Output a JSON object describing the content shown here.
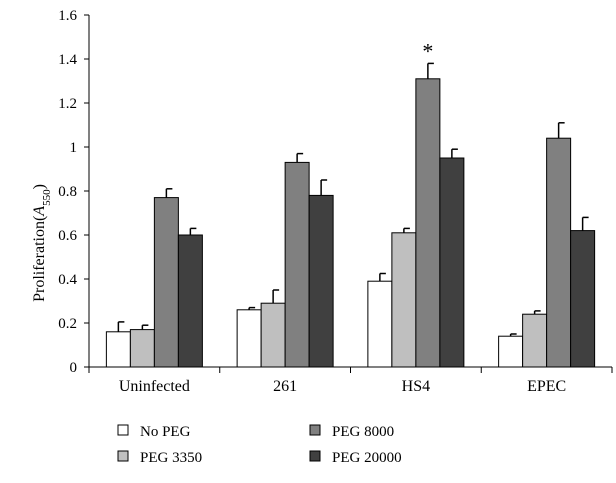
{
  "chart_data": {
    "type": "bar",
    "categories": [
      "Uninfected",
      "261",
      "HS4",
      "EPEC"
    ],
    "series": [
      {
        "name": "No PEG",
        "values": [
          0.16,
          0.26,
          0.39,
          0.14
        ],
        "errors": [
          0.045,
          0.01,
          0.035,
          0.01
        ],
        "color": "#ffffff"
      },
      {
        "name": "PEG 3350",
        "values": [
          0.17,
          0.29,
          0.61,
          0.24
        ],
        "errors": [
          0.02,
          0.06,
          0.02,
          0.015
        ],
        "color": "#bfbfbf"
      },
      {
        "name": "PEG 8000",
        "values": [
          0.77,
          0.93,
          1.31,
          1.04
        ],
        "errors": [
          0.04,
          0.04,
          0.07,
          0.07
        ],
        "color": "#808080"
      },
      {
        "name": "PEG 20000",
        "values": [
          0.6,
          0.78,
          0.95,
          0.62
        ],
        "errors": [
          0.03,
          0.07,
          0.04,
          0.06
        ],
        "color": "#404040"
      }
    ],
    "ylabel": "Proliferation",
    "ylabel_subscript": "550",
    "ylabel_var": "A",
    "xlabel": "",
    "ylim": [
      0,
      1.6
    ],
    "yticks": [
      "0",
      "0.2",
      "0.4",
      "0.6",
      "0.8",
      "1",
      "1.2",
      "1.4",
      "1.6"
    ],
    "annotations": [
      {
        "text": "*",
        "category": "HS4",
        "series": "PEG 8000"
      }
    ],
    "legend_position": "bottom",
    "grid": false
  }
}
